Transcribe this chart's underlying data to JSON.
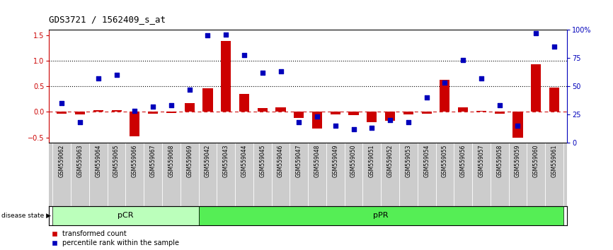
{
  "title": "GDS3721 / 1562409_s_at",
  "samples": [
    "GSM559062",
    "GSM559063",
    "GSM559064",
    "GSM559065",
    "GSM559066",
    "GSM559067",
    "GSM559068",
    "GSM559069",
    "GSM559042",
    "GSM559043",
    "GSM559044",
    "GSM559045",
    "GSM559046",
    "GSM559047",
    "GSM559048",
    "GSM559049",
    "GSM559050",
    "GSM559051",
    "GSM559052",
    "GSM559053",
    "GSM559054",
    "GSM559055",
    "GSM559056",
    "GSM559057",
    "GSM559058",
    "GSM559059",
    "GSM559060",
    "GSM559061"
  ],
  "transformed_count": [
    -0.03,
    -0.05,
    0.03,
    0.03,
    -0.48,
    -0.04,
    -0.02,
    0.17,
    0.46,
    1.38,
    0.35,
    0.07,
    0.09,
    -0.12,
    -0.33,
    -0.05,
    -0.06,
    -0.2,
    -0.18,
    -0.05,
    -0.03,
    0.62,
    0.09,
    0.02,
    -0.03,
    -0.5,
    0.93,
    0.47
  ],
  "percentile_rank": [
    35,
    18,
    57,
    60,
    28,
    32,
    33,
    47,
    95,
    96,
    78,
    62,
    63,
    18,
    23,
    15,
    12,
    13,
    20,
    18,
    40,
    53,
    73,
    57,
    33,
    15,
    97,
    85
  ],
  "pcr_count": 8,
  "bar_color": "#cc0000",
  "dot_color": "#0000bb",
  "pcr_color": "#bbffbb",
  "ppr_color": "#55ee55",
  "ylim_left": [
    -0.6,
    1.6
  ],
  "ylim_right": [
    0,
    100
  ],
  "yticks_left": [
    -0.5,
    0.0,
    0.5,
    1.0,
    1.5
  ],
  "yticks_right": [
    0,
    25,
    50,
    75,
    100
  ],
  "hline_values": [
    0.5,
    1.0
  ],
  "bg_color": "#ffffff",
  "title_fontsize": 9,
  "bar_width": 0.55,
  "dot_size": 16,
  "label_bg": "#cccccc",
  "label_sep_color": "#ffffff"
}
